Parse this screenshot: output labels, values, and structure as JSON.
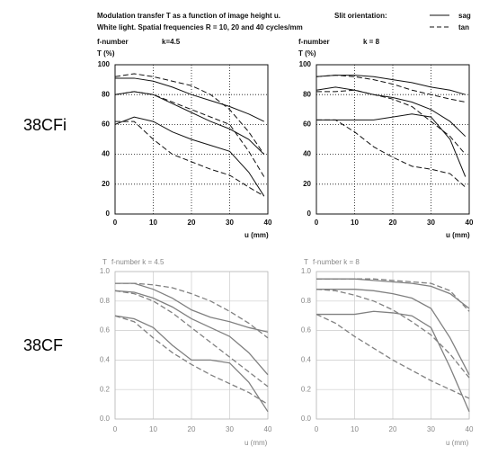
{
  "header": {
    "line1": "Modulation transfer T as a function of image height u.",
    "line2": "White light. Spatial frequencies R = 10, 20 and 40 cycles/mm"
  },
  "slit_orientation": {
    "label": "Slit orientation:",
    "entries": [
      "sag",
      "tan"
    ]
  },
  "row_labels": [
    "38CFi",
    "38CF"
  ],
  "chart_data": [
    {
      "type": "line",
      "title": "f-number",
      "subtitle": "k=4.5",
      "ylabel": "T (%)",
      "xlabel": "u (mm)",
      "color": "#111111",
      "grid": "dotted",
      "xlim": [
        0,
        40
      ],
      "xticks": [
        0,
        10,
        20,
        30,
        40
      ],
      "ylim": [
        0,
        100
      ],
      "yticks": [
        0,
        20,
        40,
        60,
        80,
        100
      ],
      "x": [
        0,
        5,
        10,
        15,
        20,
        25,
        30,
        35,
        39
      ],
      "series": [
        {
          "name": "sag",
          "values": [
            91,
            91,
            89,
            85,
            80,
            76,
            72,
            67,
            62
          ]
        },
        {
          "name": "sag",
          "values": [
            80,
            82,
            80,
            74,
            68,
            62,
            57,
            50,
            40
          ]
        },
        {
          "name": "sag",
          "values": [
            60,
            65,
            62,
            55,
            50,
            46,
            42,
            28,
            12
          ]
        },
        {
          "name": "tan",
          "values": [
            92,
            94,
            92,
            89,
            86,
            80,
            70,
            55,
            40
          ]
        },
        {
          "name": "tan",
          "values": [
            80,
            82,
            80,
            75,
            70,
            65,
            60,
            42,
            25
          ]
        },
        {
          "name": "tan",
          "values": [
            62,
            62,
            50,
            40,
            35,
            30,
            26,
            18,
            12
          ]
        }
      ]
    },
    {
      "type": "line",
      "title": "f-number",
      "subtitle": "k = 8",
      "ylabel": "T (%)",
      "xlabel": "u (mm)",
      "color": "#111111",
      "grid": "dotted",
      "xlim": [
        0,
        40
      ],
      "xticks": [
        0,
        10,
        20,
        30,
        40
      ],
      "ylim": [
        0,
        100
      ],
      "yticks": [
        0,
        20,
        40,
        60,
        80,
        100
      ],
      "x": [
        0,
        5,
        10,
        15,
        20,
        25,
        30,
        35,
        39
      ],
      "series": [
        {
          "name": "sag",
          "values": [
            92,
            93,
            93,
            92,
            90,
            88,
            85,
            83,
            80
          ]
        },
        {
          "name": "sag",
          "values": [
            83,
            85,
            83,
            80,
            78,
            75,
            70,
            62,
            52
          ]
        },
        {
          "name": "sag",
          "values": [
            63,
            63,
            63,
            63,
            65,
            67,
            65,
            50,
            25
          ]
        },
        {
          "name": "tan",
          "values": [
            92,
            93,
            92,
            90,
            87,
            83,
            80,
            77,
            75
          ]
        },
        {
          "name": "tan",
          "values": [
            82,
            82,
            83,
            80,
            77,
            72,
            62,
            52,
            40
          ]
        },
        {
          "name": "tan",
          "values": [
            63,
            63,
            55,
            45,
            38,
            32,
            30,
            27,
            18
          ]
        }
      ]
    },
    {
      "type": "line",
      "title": "f-number k = 4.5",
      "ylabel": "T",
      "xlabel": "u (mm)",
      "color": "#808080",
      "grid": "solid",
      "xlim": [
        0,
        40
      ],
      "xticks": [
        0,
        10,
        20,
        30,
        40
      ],
      "ylim": [
        0,
        1
      ],
      "yticks": [
        {
          "value": 0,
          "label": "0.0"
        },
        0.2,
        0.4,
        0.6,
        0.8,
        {
          "value": 1,
          "label": "1.0"
        }
      ],
      "x": [
        0,
        5,
        10,
        15,
        20,
        25,
        30,
        35,
        40
      ],
      "series": [
        {
          "name": "sag",
          "values": [
            0.92,
            0.92,
            0.88,
            0.82,
            0.74,
            0.69,
            0.66,
            0.62,
            0.59
          ]
        },
        {
          "name": "sag",
          "values": [
            0.87,
            0.86,
            0.82,
            0.76,
            0.68,
            0.62,
            0.56,
            0.45,
            0.3
          ]
        },
        {
          "name": "sag",
          "values": [
            0.7,
            0.68,
            0.62,
            0.5,
            0.4,
            0.4,
            0.38,
            0.25,
            0.05
          ]
        },
        {
          "name": "tan",
          "values": [
            0.92,
            0.92,
            0.91,
            0.89,
            0.85,
            0.8,
            0.73,
            0.65,
            0.55
          ]
        },
        {
          "name": "tan",
          "values": [
            0.87,
            0.85,
            0.8,
            0.72,
            0.62,
            0.52,
            0.42,
            0.32,
            0.22
          ]
        },
        {
          "name": "tan",
          "values": [
            0.7,
            0.66,
            0.55,
            0.45,
            0.37,
            0.3,
            0.24,
            0.18,
            0.1
          ]
        }
      ]
    },
    {
      "type": "line",
      "title": "f-number k = 8",
      "ylabel": "T",
      "xlabel": "u (mm)",
      "color": "#808080",
      "grid": "solid",
      "xlim": [
        0,
        40
      ],
      "xticks": [
        0,
        10,
        20,
        30,
        40
      ],
      "ylim": [
        0,
        1
      ],
      "yticks": [
        {
          "value": 0,
          "label": "0.0"
        },
        0.2,
        0.4,
        0.6,
        0.8,
        {
          "value": 1,
          "label": "1.0"
        }
      ],
      "x": [
        0,
        5,
        10,
        15,
        20,
        25,
        30,
        35,
        40
      ],
      "series": [
        {
          "name": "sag",
          "values": [
            0.95,
            0.95,
            0.95,
            0.94,
            0.93,
            0.92,
            0.9,
            0.85,
            0.75
          ]
        },
        {
          "name": "sag",
          "values": [
            0.88,
            0.88,
            0.88,
            0.87,
            0.85,
            0.82,
            0.75,
            0.55,
            0.3
          ]
        },
        {
          "name": "sag",
          "values": [
            0.71,
            0.71,
            0.71,
            0.73,
            0.72,
            0.7,
            0.62,
            0.35,
            0.05
          ]
        },
        {
          "name": "tan",
          "values": [
            0.95,
            0.95,
            0.95,
            0.95,
            0.94,
            0.93,
            0.92,
            0.87,
            0.73
          ]
        },
        {
          "name": "tan",
          "values": [
            0.88,
            0.87,
            0.84,
            0.8,
            0.74,
            0.66,
            0.57,
            0.44,
            0.28
          ]
        },
        {
          "name": "tan",
          "values": [
            0.71,
            0.65,
            0.56,
            0.48,
            0.4,
            0.33,
            0.26,
            0.2,
            0.14
          ]
        }
      ]
    }
  ]
}
